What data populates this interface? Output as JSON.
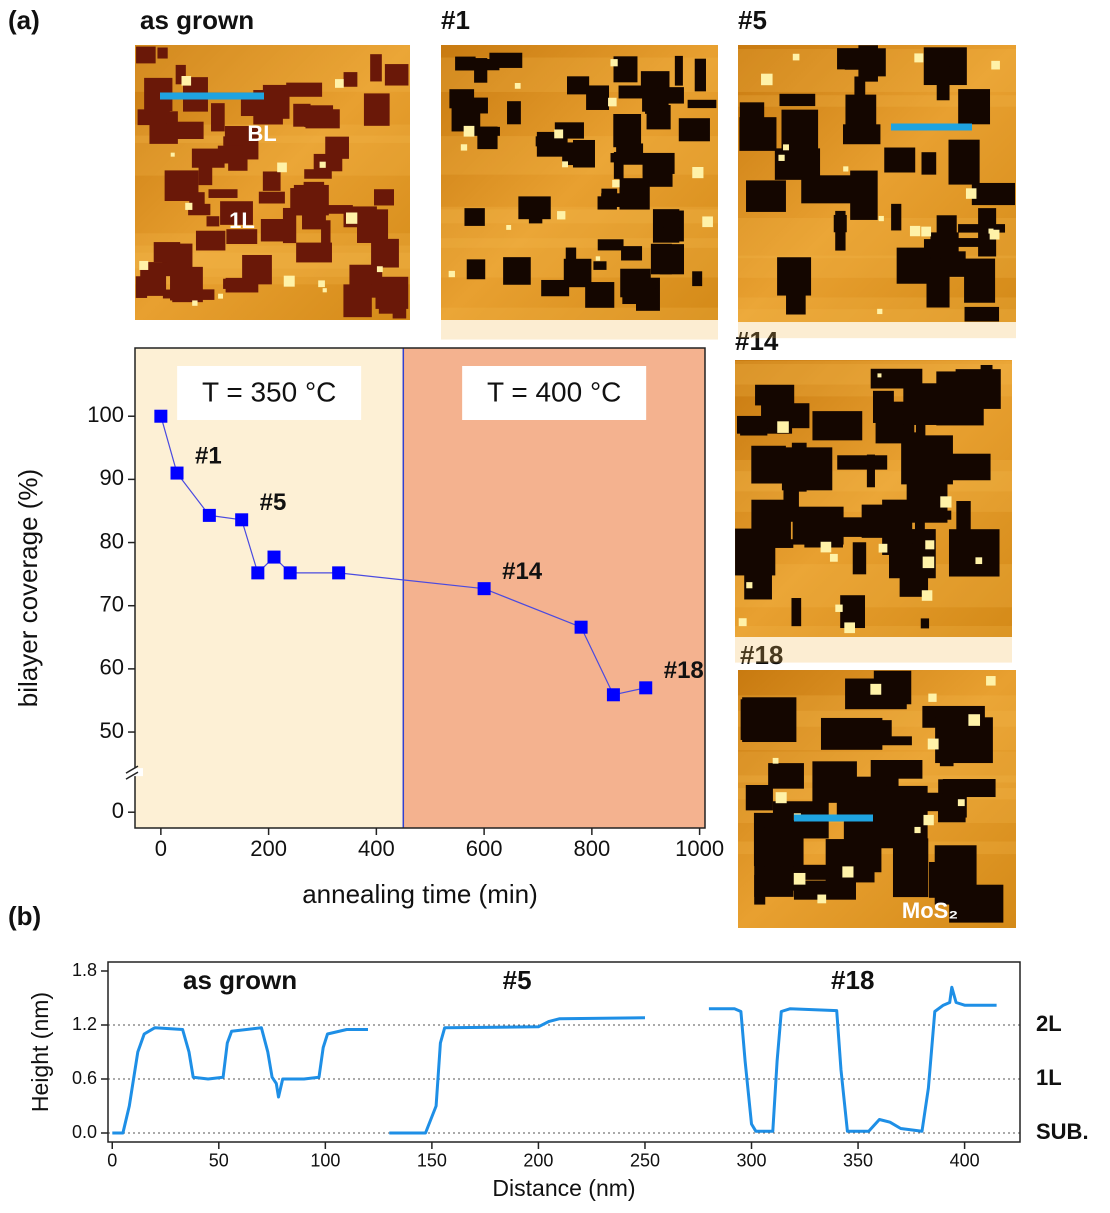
{
  "panels": {
    "a": "(a)",
    "b": "(b)"
  },
  "images": [
    {
      "label": "as grown",
      "annotations": [
        "BL",
        "1L"
      ]
    },
    {
      "label": "#1"
    },
    {
      "label": "#5"
    },
    {
      "label": "#14"
    },
    {
      "label": "#18",
      "annotations": [
        "MoS₂"
      ]
    }
  ],
  "chart_data": [
    {
      "type": "line",
      "markers": true,
      "x_label": "annealing time (min)",
      "y_label": "bilayer coverage (%)",
      "xlim": [
        -48,
        1010
      ],
      "ylim": [
        -2.5,
        110.8
      ],
      "ybreak": [
        5,
        45
      ],
      "xticks": [
        0,
        200,
        400,
        600,
        800,
        1000
      ],
      "yticks": [
        0,
        50,
        60,
        70,
        80,
        90,
        100
      ],
      "regions": [
        {
          "label": "T = 350 °C",
          "x": [
            -48,
            450
          ],
          "color": "#fdf0d5"
        },
        {
          "label": "T = 400 °C",
          "x": [
            450,
            1010
          ],
          "color": "#f4b28f"
        }
      ],
      "series": [
        {
          "color": "#0000ff",
          "x": [
            0,
            30,
            90,
            150,
            180,
            210,
            240,
            330,
            600,
            780,
            840,
            900
          ],
          "values": [
            100,
            91,
            84.3,
            83.6,
            75.2,
            77.7,
            75.2,
            75.2,
            72.7,
            66.6,
            55.9,
            57
          ],
          "point_labels": [
            null,
            "#1",
            null,
            "#5",
            null,
            null,
            null,
            null,
            "#14",
            null,
            null,
            "#18"
          ]
        }
      ]
    },
    {
      "type": "line",
      "markers": false,
      "x_label": "Distance (nm)",
      "y_label": "Height (nm)",
      "xlim": [
        -2,
        426
      ],
      "ylim": [
        -0.1,
        1.9
      ],
      "xticks": [
        0,
        50,
        100,
        150,
        200,
        250,
        300,
        350,
        400
      ],
      "yticks": [
        {
          "value": 0,
          "label": "0.0"
        },
        0.6,
        1.2,
        1.8
      ],
      "reference_lines": [
        {
          "value": 1.2,
          "label": "2L"
        },
        {
          "value": 0.6,
          "label": "1L"
        },
        {
          "value": 0,
          "label": "SUB."
        }
      ],
      "annotations": [
        "as grown",
        "#5",
        "#18"
      ],
      "series": [
        {
          "color": "#1e8fe6",
          "x": [
            0,
            5,
            8,
            12,
            15,
            20,
            33,
            36,
            38,
            45,
            52,
            54,
            56,
            70,
            73,
            75,
            77,
            78,
            80,
            90,
            97,
            99,
            101,
            110,
            120,
            125,
            130,
            147,
            152,
            154,
            156,
            200,
            205,
            210,
            250,
            265,
            280,
            292,
            295,
            297,
            300,
            302,
            310,
            312,
            314,
            318,
            340,
            342,
            345,
            355,
            360,
            365,
            370,
            380,
            383,
            386,
            390,
            393,
            394,
            396,
            400,
            415
          ],
          "values": [
            0,
            0,
            0.3,
            0.9,
            1.1,
            1.17,
            1.15,
            0.9,
            0.62,
            0.6,
            0.62,
            1.0,
            1.13,
            1.17,
            0.9,
            0.62,
            0.55,
            0.4,
            0.6,
            0.6,
            0.62,
            0.95,
            1.1,
            1.15,
            1.15,
            null,
            0,
            0,
            0.3,
            1.0,
            1.17,
            1.18,
            1.24,
            1.27,
            1.28,
            null,
            1.38,
            1.38,
            1.35,
            0.8,
            0.1,
            0.02,
            0.02,
            0.8,
            1.35,
            1.38,
            1.36,
            0.7,
            0.02,
            0.02,
            0.15,
            0.12,
            0.05,
            0.02,
            0.5,
            1.35,
            1.42,
            1.45,
            1.62,
            1.45,
            1.42,
            1.42
          ]
        }
      ]
    }
  ]
}
